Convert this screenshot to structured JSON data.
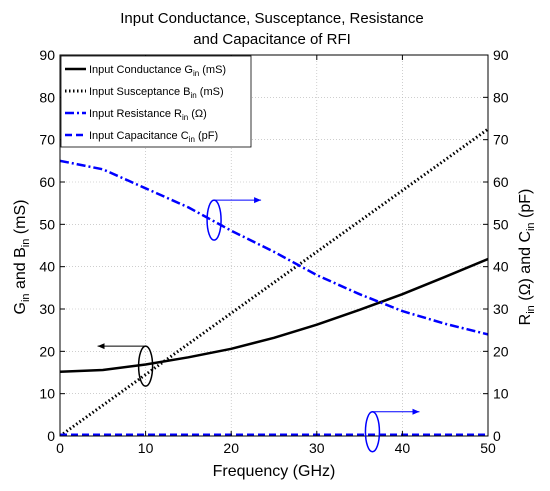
{
  "chart_data": {
    "type": "line",
    "title": [
      "Input Conductance, Susceptance, Resistance",
      "and Capacitance of RFI"
    ],
    "xlabel": "Frequency (GHz)",
    "ylabel_left": {
      "parts": [
        "G",
        "in",
        " and B",
        "in",
        " (mS)"
      ]
    },
    "ylabel_right": {
      "parts": [
        "R",
        "in",
        " (Ω) and C",
        "in",
        " (pF)"
      ]
    },
    "xlim": [
      0,
      50
    ],
    "ylim_left": [
      0,
      90
    ],
    "ylim_right": [
      0,
      90
    ],
    "xticks": [
      "0",
      "10",
      "20",
      "30",
      "40",
      "50"
    ],
    "yticks_left": [
      "0",
      "10",
      "20",
      "30",
      "40",
      "50",
      "60",
      "70",
      "80",
      "90"
    ],
    "yticks_right": [
      "0",
      "10",
      "20",
      "30",
      "40",
      "50",
      "60",
      "70",
      "80",
      "90"
    ],
    "grid": true,
    "legend_position": "top-left",
    "series": [
      {
        "name": {
          "main": "Input Conductance G",
          "sub": "in",
          "unit": " (mS)"
        },
        "axis": "left",
        "color": "#000000",
        "style": "solid",
        "x": [
          0,
          5,
          10,
          15,
          20,
          25,
          30,
          35,
          40,
          45,
          50
        ],
        "y": [
          15.2,
          15.6,
          16.9,
          18.6,
          20.6,
          23.2,
          26.3,
          29.8,
          33.5,
          37.6,
          41.8
        ]
      },
      {
        "name": {
          "main": "Input Susceptance B",
          "sub": "in",
          "unit": " (mS)"
        },
        "axis": "left",
        "color": "#000000",
        "style": "dotted",
        "x": [
          0,
          10,
          20,
          30,
          40,
          50
        ],
        "y": [
          0,
          14.5,
          29.0,
          43.5,
          58.0,
          72.5
        ]
      },
      {
        "name": {
          "main": "Input Resistance R",
          "sub": "in",
          "unit": " (Ω)"
        },
        "axis": "right",
        "color": "#0000ff",
        "style": "dashdot",
        "x": [
          0,
          5,
          10,
          15,
          20,
          25,
          30,
          35,
          40,
          45,
          50
        ],
        "y": [
          65.0,
          63.0,
          58.5,
          54.0,
          48.5,
          43.5,
          38.0,
          33.5,
          29.5,
          26.5,
          24.0
        ]
      },
      {
        "name": {
          "main": "Input Capacitance C",
          "sub": "in",
          "unit": " (pF)"
        },
        "axis": "right",
        "color": "#0000ff",
        "style": "dashed",
        "x": [
          0,
          50
        ],
        "y": [
          0.3,
          0.3
        ]
      }
    ],
    "annotations": [
      {
        "type": "ellipse-arrow",
        "target": "left-axis",
        "color": "#000000",
        "at": [
          10,
          16.5
        ]
      },
      {
        "type": "ellipse-arrow",
        "target": "right-axis",
        "color": "#0000ff",
        "at": [
          18,
          51
        ]
      },
      {
        "type": "ellipse-arrow",
        "target": "right-axis",
        "color": "#0000ff",
        "at": [
          36.5,
          1
        ]
      }
    ]
  }
}
